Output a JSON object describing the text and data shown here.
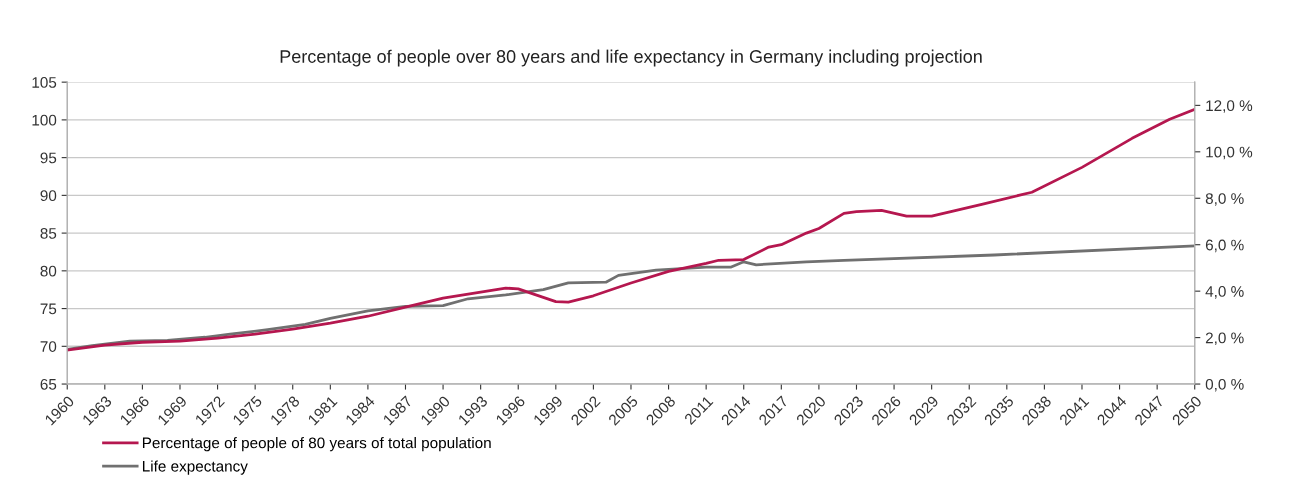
{
  "chart_data": {
    "type": "line",
    "title": "Percentage of people over 80 years and life expectancy in Germany including projection",
    "xlim": [
      1960,
      2050
    ],
    "xticks": [
      1960,
      1963,
      1966,
      1969,
      1972,
      1975,
      1978,
      1981,
      1984,
      1987,
      1990,
      1993,
      1996,
      1999,
      2002,
      2005,
      2008,
      2011,
      2014,
      2017,
      2020,
      2023,
      2026,
      2029,
      2032,
      2035,
      2038,
      2041,
      2044,
      2047,
      2050
    ],
    "ylim": [
      65,
      105
    ],
    "yticks": [
      65,
      70,
      75,
      80,
      85,
      90,
      95,
      100,
      105
    ],
    "y2lim": [
      0,
      13
    ],
    "y2ticks": [
      {
        "value": 0,
        "label": "0,0 %"
      },
      {
        "value": 2,
        "label": "2,0 %"
      },
      {
        "value": 4,
        "label": "4,0 %"
      },
      {
        "value": 6,
        "label": "6,0 %"
      },
      {
        "value": 8,
        "label": "8,0 %"
      },
      {
        "value": 10,
        "label": "10,0 %"
      },
      {
        "value": 12,
        "label": "12,0 %"
      }
    ],
    "grid": "y",
    "legend": "bottom left",
    "marker": "none",
    "line_style": "solid",
    "series": [
      {
        "name": "Percentage of people of 80 years of total population",
        "color": "#b5174f",
        "axis": "y2",
        "x": [
          1960,
          1963,
          1966,
          1969,
          1972,
          1975,
          1978,
          1981,
          1984,
          1987,
          1990,
          1993,
          1995,
          1996,
          1999,
          2000,
          2002,
          2005,
          2008,
          2011,
          2012,
          2014,
          2016,
          2017,
          2019,
          2020,
          2022,
          2023,
          2025,
          2027,
          2029,
          2033,
          2037,
          2041,
          2045,
          2048,
          2050
        ],
        "values": [
          1.46,
          1.68,
          1.8,
          1.85,
          1.98,
          2.15,
          2.37,
          2.62,
          2.92,
          3.31,
          3.7,
          3.96,
          4.13,
          4.1,
          3.55,
          3.53,
          3.8,
          4.35,
          4.85,
          5.2,
          5.33,
          5.36,
          5.9,
          6.0,
          6.5,
          6.7,
          7.35,
          7.42,
          7.48,
          7.23,
          7.23,
          7.74,
          8.26,
          9.33,
          10.58,
          11.4,
          11.83
        ]
      },
      {
        "name": "Life expectancy",
        "color": "#707070",
        "axis": "y",
        "x": [
          1960,
          1962,
          1965,
          1968,
          1971,
          1973,
          1976,
          1979,
          1981,
          1984,
          1987,
          1990,
          1992,
          1995,
          1998,
          2000,
          2003,
          2004,
          2007,
          2011,
          2013,
          2014,
          2015,
          2019,
          2022,
          2034,
          2050
        ],
        "values": [
          69.6,
          70.1,
          70.7,
          70.8,
          71.2,
          71.6,
          72.2,
          72.9,
          73.7,
          74.7,
          75.3,
          75.4,
          76.3,
          76.8,
          77.5,
          78.4,
          78.5,
          79.4,
          80.1,
          80.5,
          80.5,
          81.2,
          80.8,
          81.2,
          81.4,
          82.1,
          83.3
        ]
      }
    ]
  }
}
